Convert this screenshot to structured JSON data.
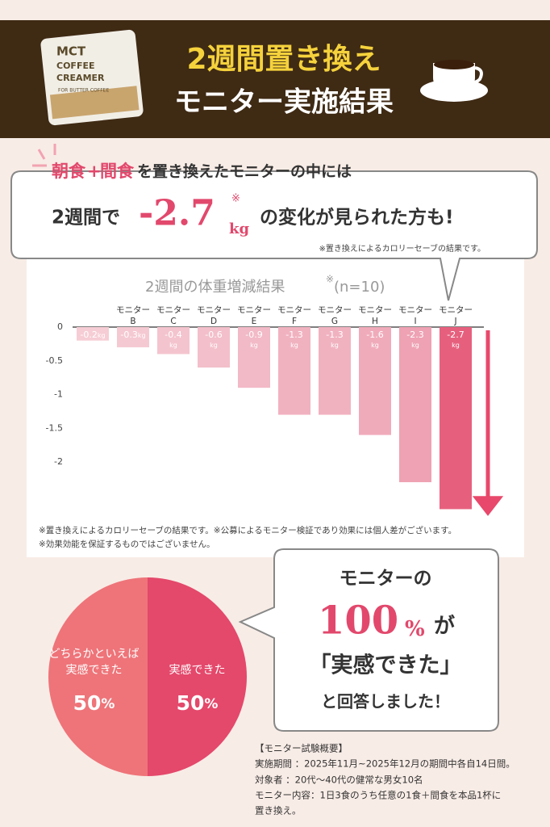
{
  "header": {
    "title_line1": "2週間置き換え",
    "title_line2": "モニター実施結果",
    "product": {
      "lines": [
        "MCT",
        "COFFEE",
        "CREAMER"
      ],
      "sub": "FOR BUTTER COFFEE"
    }
  },
  "callout": {
    "lead_highlight1": "朝食",
    "lead_plus": "+",
    "lead_highlight2": "間食",
    "lead_rest": "を置き換えたモニターの中には",
    "line2_prefix": "2週間で",
    "figure": "-2.7",
    "figure_mark": "※",
    "figure_unit": "kg",
    "line2_suffix": "の変化が見られた方も!",
    "note": "※置き換えによるカロリーセーブの結果です。"
  },
  "chart_data": [
    {
      "type": "bar",
      "title": "2週間の体重増減結果",
      "title_note": "※",
      "sample": "(n=10)",
      "categories": [
        null,
        "モニター B",
        "モニター C",
        "モニター D",
        "モニター E",
        "モニター F",
        "モニター G",
        "モニター H",
        "モニター I",
        "モニター J"
      ],
      "values": [
        -0.2,
        -0.3,
        -0.4,
        -0.6,
        -0.9,
        -1.3,
        -1.3,
        -1.6,
        -2.3,
        -2.7
      ],
      "value_labels": [
        "-0.2kg",
        "-0.3kg",
        "-0.4kg",
        "-0.6kg",
        "-0.9kg",
        "-1.3kg",
        "-1.3kg",
        "-1.6kg",
        "-2.3kg",
        "-2.7kg"
      ],
      "colors": [
        "#f6cdd5",
        "#f5c9d2",
        "#f4c4ce",
        "#f3bfca",
        "#f2b9c6",
        "#f1b2c0",
        "#f1b2c0",
        "#f0abba",
        "#eea2b3",
        "#e6607e"
      ],
      "ylim": [
        -2.8,
        0
      ],
      "yticks": [
        0,
        -0.5,
        -1,
        -1.5,
        -2
      ],
      "arrow_color": "#e8486b"
    },
    {
      "type": "pie",
      "categories": [
        "どちらかといえば\n実感できた",
        "実感できた"
      ],
      "values": [
        50,
        50
      ],
      "value_labels": [
        "50%",
        "50%"
      ],
      "colors": [
        "#ee7479",
        "#e4486b"
      ]
    }
  ],
  "chart_notes": [
    "※置き換えによるカロリーセーブの結果です。※公募によるモニター検証であり効果には個人差がございます。",
    "※効果効能を保証するものではございません。"
  ],
  "result": {
    "line1": "モニターの",
    "figure": "100",
    "unit": "%",
    "particle": "が",
    "quote": "「実感できた」",
    "line3": "と回答しました！"
  },
  "summary": {
    "title": "【モニター試験概要】",
    "lines": [
      "実施期間 ：2025年11月~2025年12月の期間中各自14日間。",
      "対象者 ：20代〜40代の健常な男女10名",
      "モニター内容：1日3食のうち任意の1食＋間食を本品1杯に",
      "置き換え。"
    ]
  }
}
